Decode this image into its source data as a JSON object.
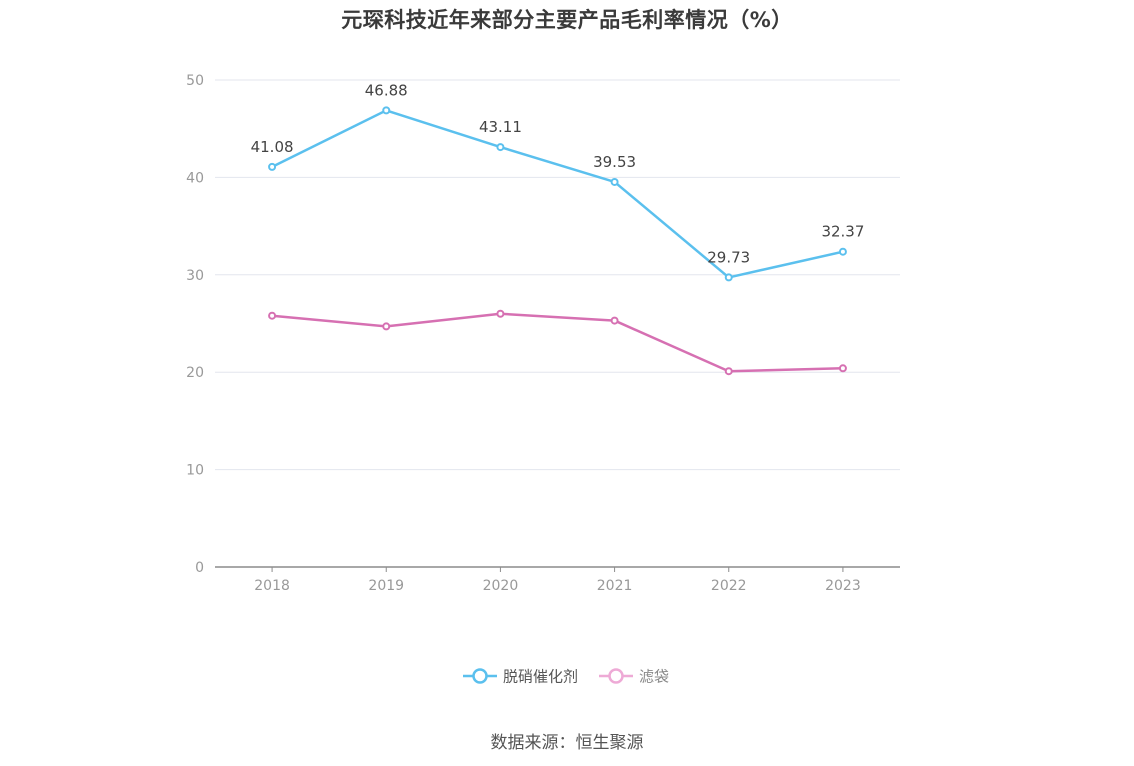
{
  "chart_data": {
    "type": "line",
    "title": "元琛科技近年来部分主要产品毛利率情况（%）",
    "x": [
      "2018",
      "2019",
      "2020",
      "2021",
      "2022",
      "2023"
    ],
    "ylim": [
      0,
      50
    ],
    "yticks": [
      0,
      10,
      20,
      30,
      40,
      50
    ],
    "grid": true,
    "legend_position": "bottom",
    "series": [
      {
        "name": "脱硝催化剂",
        "color": "#5bc0ee",
        "values": [
          41.08,
          46.88,
          43.11,
          39.53,
          29.73,
          32.37
        ],
        "labels": [
          "41.08",
          "46.88",
          "43.11",
          "39.53",
          "29.73",
          "32.37"
        ],
        "show_labels": true
      },
      {
        "name": "滤袋",
        "color": "#d670b2",
        "legend_color": "#eeaad6",
        "values": [
          25.8,
          24.7,
          26.0,
          25.3,
          20.1,
          20.4
        ],
        "labels": [],
        "show_labels": false
      }
    ]
  },
  "source": "数据来源：恒生聚源"
}
